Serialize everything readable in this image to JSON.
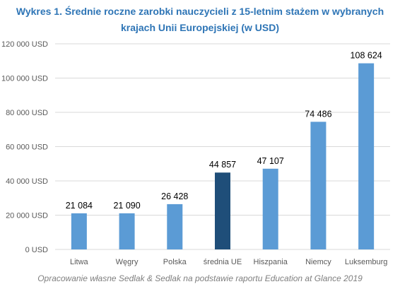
{
  "chart_data": {
    "type": "bar",
    "title_line1": "Wykres 1. Średnie roczne zarobki nauczycieli z 15-letnim stażem w wybranych",
    "title_line2": "krajach Unii Europejskiej (w USD)",
    "categories": [
      "Litwa",
      "Węgry",
      "Polska",
      "średnia UE",
      "Hiszpania",
      "Niemcy",
      "Luksemburg"
    ],
    "values": [
      21084,
      21090,
      26428,
      44857,
      47107,
      74486,
      108624
    ],
    "value_labels": [
      "21 084",
      "21 090",
      "26 428",
      "44 857",
      "47 107",
      "74 486",
      "108 624"
    ],
    "y_ticks": [
      "0 USD",
      "20 000 USD",
      "40 000 USD",
      "60 000 USD",
      "80 000 USD",
      "100 000 USD",
      "120 000 USD"
    ],
    "ylim": [
      0,
      120000
    ],
    "y_step": 20000,
    "grid": true,
    "colors": {
      "bar": "#5b9bd5",
      "highlight_bar": "#1f4e79",
      "title": "#2e75b6",
      "grid": "#d9d9d9"
    },
    "highlight_index": 3,
    "source": "Opracowanie własne Sedlak & Sedlak na podstawie raportu Education at Glance 2019"
  }
}
